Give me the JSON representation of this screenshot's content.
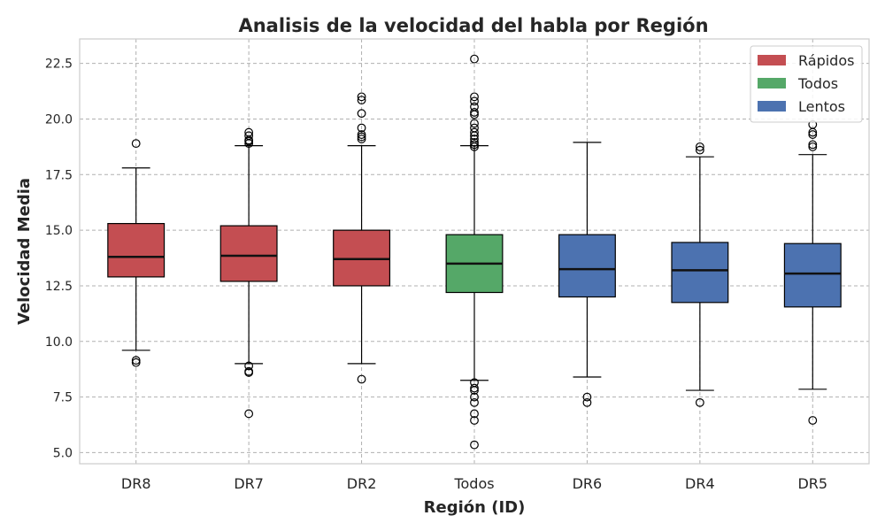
{
  "chart_data": {
    "type": "box",
    "title": "Analisis de la velocidad del habla por Región",
    "xlabel": "Región (ID)",
    "ylabel": "Velocidad Media",
    "ylim": [
      4.5,
      23.6
    ],
    "yticks": [
      "5.0",
      "7.5",
      "10.0",
      "12.5",
      "15.0",
      "17.5",
      "20.0",
      "22.5"
    ],
    "grid": true,
    "legend_position": "top-right",
    "legend": [
      {
        "label": "Rápidos",
        "color": "#c44e52"
      },
      {
        "label": "Todos",
        "color": "#55a868"
      },
      {
        "label": "Lentos",
        "color": "#4c72b0"
      }
    ],
    "categories": [
      "DR8",
      "DR7",
      "DR2",
      "Todos",
      "DR6",
      "DR4",
      "DR5"
    ],
    "boxes": [
      {
        "category": "DR8",
        "group": "Rápidos",
        "color": "#c44e52",
        "whisker_low": 9.6,
        "q1": 12.9,
        "median": 13.8,
        "q3": 15.3,
        "whisker_high": 17.8,
        "outliers": [
          9.05,
          9.15,
          18.9
        ]
      },
      {
        "category": "DR7",
        "group": "Rápidos",
        "color": "#c44e52",
        "whisker_low": 9.0,
        "q1": 12.7,
        "median": 13.85,
        "q3": 15.2,
        "whisker_high": 18.8,
        "outliers": [
          6.75,
          8.6,
          8.65,
          8.9,
          18.9,
          19.0,
          19.05,
          19.25,
          19.4
        ]
      },
      {
        "category": "DR2",
        "group": "Rápidos",
        "color": "#c44e52",
        "whisker_low": 9.0,
        "q1": 12.5,
        "median": 13.7,
        "q3": 15.0,
        "whisker_high": 18.8,
        "outliers": [
          8.3,
          19.1,
          19.2,
          19.3,
          19.6,
          20.25,
          20.85,
          21.0
        ]
      },
      {
        "category": "Todos",
        "group": "Todos",
        "color": "#55a868",
        "whisker_low": 8.25,
        "q1": 12.2,
        "median": 13.5,
        "q3": 14.8,
        "whisker_high": 18.8,
        "outliers": [
          5.35,
          6.45,
          6.75,
          7.25,
          7.5,
          7.8,
          7.9,
          8.15,
          18.75,
          18.85,
          18.95,
          19.1,
          19.25,
          19.4,
          19.6,
          19.8,
          20.2,
          20.3,
          20.55,
          20.8,
          21.0,
          22.7
        ]
      },
      {
        "category": "DR6",
        "group": "Lentos",
        "color": "#4c72b0",
        "whisker_low": 8.4,
        "q1": 12.0,
        "median": 13.25,
        "q3": 14.8,
        "whisker_high": 18.95,
        "outliers": [
          7.25,
          7.5
        ]
      },
      {
        "category": "DR4",
        "group": "Lentos",
        "color": "#4c72b0",
        "whisker_low": 7.8,
        "q1": 11.75,
        "median": 13.2,
        "q3": 14.45,
        "whisker_high": 18.3,
        "outliers": [
          7.25,
          18.6,
          18.75
        ]
      },
      {
        "category": "DR5",
        "group": "Lentos",
        "color": "#4c72b0",
        "whisker_low": 7.85,
        "q1": 11.55,
        "median": 13.05,
        "q3": 14.4,
        "whisker_high": 18.4,
        "outliers": [
          6.45,
          18.75,
          18.85,
          19.3,
          19.4,
          19.75
        ]
      }
    ]
  }
}
